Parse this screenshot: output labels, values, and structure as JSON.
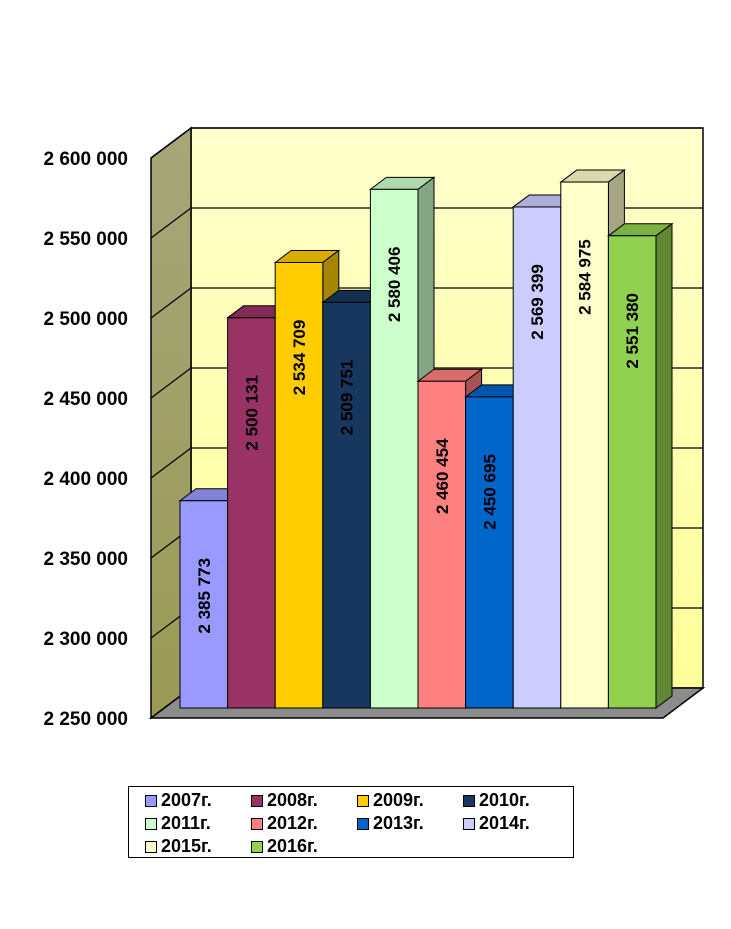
{
  "chart_data": {
    "type": "bar",
    "title": "",
    "xlabel": "",
    "ylabel": "",
    "ylim": [
      2250000,
      2600000
    ],
    "y_ticks": [
      "2 250 000",
      "2 300 000",
      "2 350 000",
      "2 400 000",
      "2 450 000",
      "2 500 000",
      "2 550 000",
      "2 600 000"
    ],
    "grid": true,
    "three_d": true,
    "legend_position": "bottom",
    "series": [
      {
        "name": "2007г.",
        "value": 2385773,
        "label": "2 385 773",
        "color": "#9999ff",
        "label_color": "#000000"
      },
      {
        "name": "2008г.",
        "value": 2500131,
        "label": "2 500 131",
        "color": "#993366",
        "label_color": "#000000"
      },
      {
        "name": "2009г.",
        "value": 2534709,
        "label": "2 534 709",
        "color": "#ffcc00",
        "label_color": "#000000"
      },
      {
        "name": "2010г.",
        "value": 2509751,
        "label": "2 509 751",
        "color": "#17375e",
        "label_color": "#000000"
      },
      {
        "name": "2011г.",
        "value": 2580406,
        "label": "2 580 406",
        "color": "#ccffcc",
        "label_color": "#000000"
      },
      {
        "name": "2012г.",
        "value": 2460454,
        "label": "2 460 454",
        "color": "#ff8080",
        "label_color": "#000000"
      },
      {
        "name": "2013г.",
        "value": 2450695,
        "label": "2 450 695",
        "color": "#0066cc",
        "label_color": "#000000"
      },
      {
        "name": "2014г.",
        "value": 2569399,
        "label": "2 569 399",
        "color": "#ccccff",
        "label_color": "#000000"
      },
      {
        "name": "2015г.",
        "value": 2584975,
        "label": "2 584 975",
        "color": "#ffffcc",
        "label_color": "#000000"
      },
      {
        "name": "2016г.",
        "value": 2551380,
        "label": "2 551 380",
        "color": "#92d050",
        "label_color": "#000000"
      }
    ]
  }
}
